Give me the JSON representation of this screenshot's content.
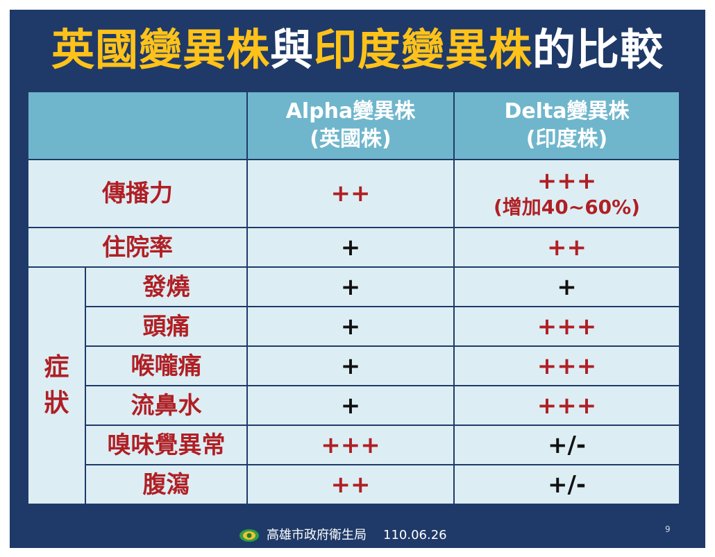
{
  "title": {
    "part1": "英國變異株",
    "part2": "與",
    "part3": "印度變異株",
    "part4": "的比較"
  },
  "table": {
    "header": {
      "col1": "",
      "alpha_line1": "Alpha變異株",
      "alpha_line2": "(英國株)",
      "delta_line1": "Delta變異株",
      "delta_line2": "(印度株)"
    },
    "rows": [
      {
        "label": "傳播力",
        "alpha": "++",
        "delta": "+++",
        "delta_note": "(增加40~60%)"
      },
      {
        "label": "住院率",
        "alpha": "+",
        "delta": "++"
      }
    ],
    "symptom_group": {
      "line1": "症",
      "line2": "狀"
    },
    "symptoms": [
      {
        "label": "發燒",
        "alpha": "+",
        "delta": "+"
      },
      {
        "label": "頭痛",
        "alpha": "+",
        "delta": "+++"
      },
      {
        "label": "喉嚨痛",
        "alpha": "+",
        "delta": "+++"
      },
      {
        "label": "流鼻水",
        "alpha": "+",
        "delta": "+++"
      },
      {
        "label": "嗅味覺異常",
        "alpha": "+++",
        "delta": "+/-"
      },
      {
        "label": "腹瀉",
        "alpha": "++",
        "delta": "+/-"
      }
    ]
  },
  "footer": {
    "agency": "高雄市政府衛生局",
    "date": "110.06.26",
    "logo_icon": "kaohsiung-health-bureau-logo-icon"
  },
  "page_number": "9",
  "colors": {
    "background": "#1f3a68",
    "title_highlight": "#ffc21a",
    "header_fill": "#6fb6cc",
    "cell_fill": "#dceef4",
    "value_red": "#b01f24",
    "value_black": "#111111"
  }
}
